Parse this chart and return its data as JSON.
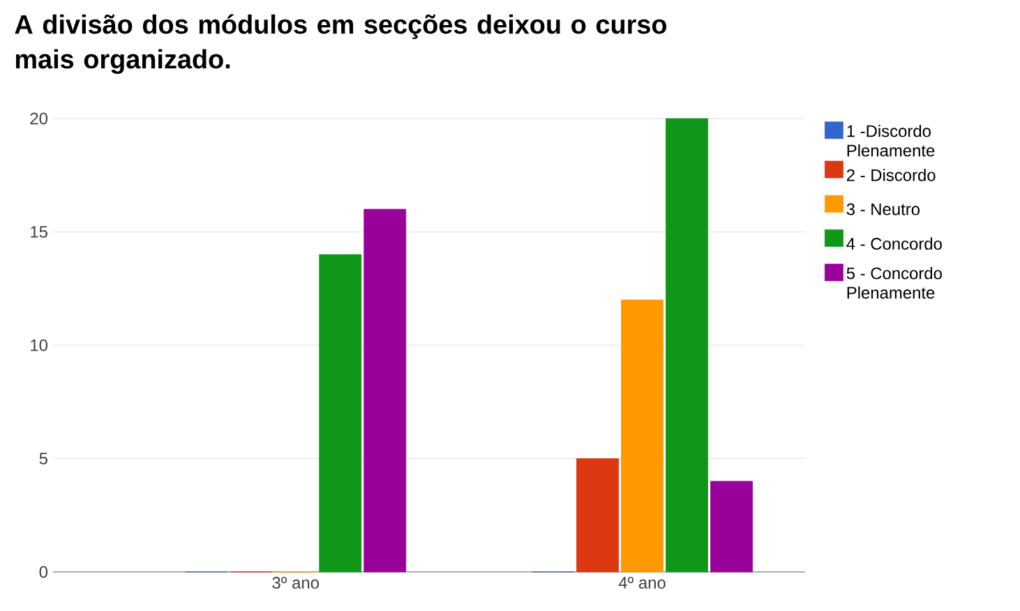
{
  "chart_data": {
    "type": "bar",
    "title": "A divisão dos módulos em secções deixou o curso mais organizado.",
    "categories": [
      "3º ano",
      "4º ano"
    ],
    "series": [
      {
        "name": "1 -Discordo Plenamente",
        "color": "#3366cc",
        "values": [
          0,
          0
        ]
      },
      {
        "name": "2 - Discordo",
        "color": "#dc3912",
        "values": [
          0,
          5
        ]
      },
      {
        "name": "3 - Neutro",
        "color": "#ff9900",
        "values": [
          0,
          12
        ]
      },
      {
        "name": "4 - Concordo",
        "color": "#109618",
        "values": [
          14,
          20
        ]
      },
      {
        "name": "5 - Concordo Plenamente",
        "color": "#990099",
        "values": [
          16,
          4
        ]
      }
    ],
    "ylim": [
      0,
      20
    ],
    "yticks": [
      0,
      5,
      10,
      15,
      20
    ],
    "grid": "y",
    "legend": "right"
  }
}
